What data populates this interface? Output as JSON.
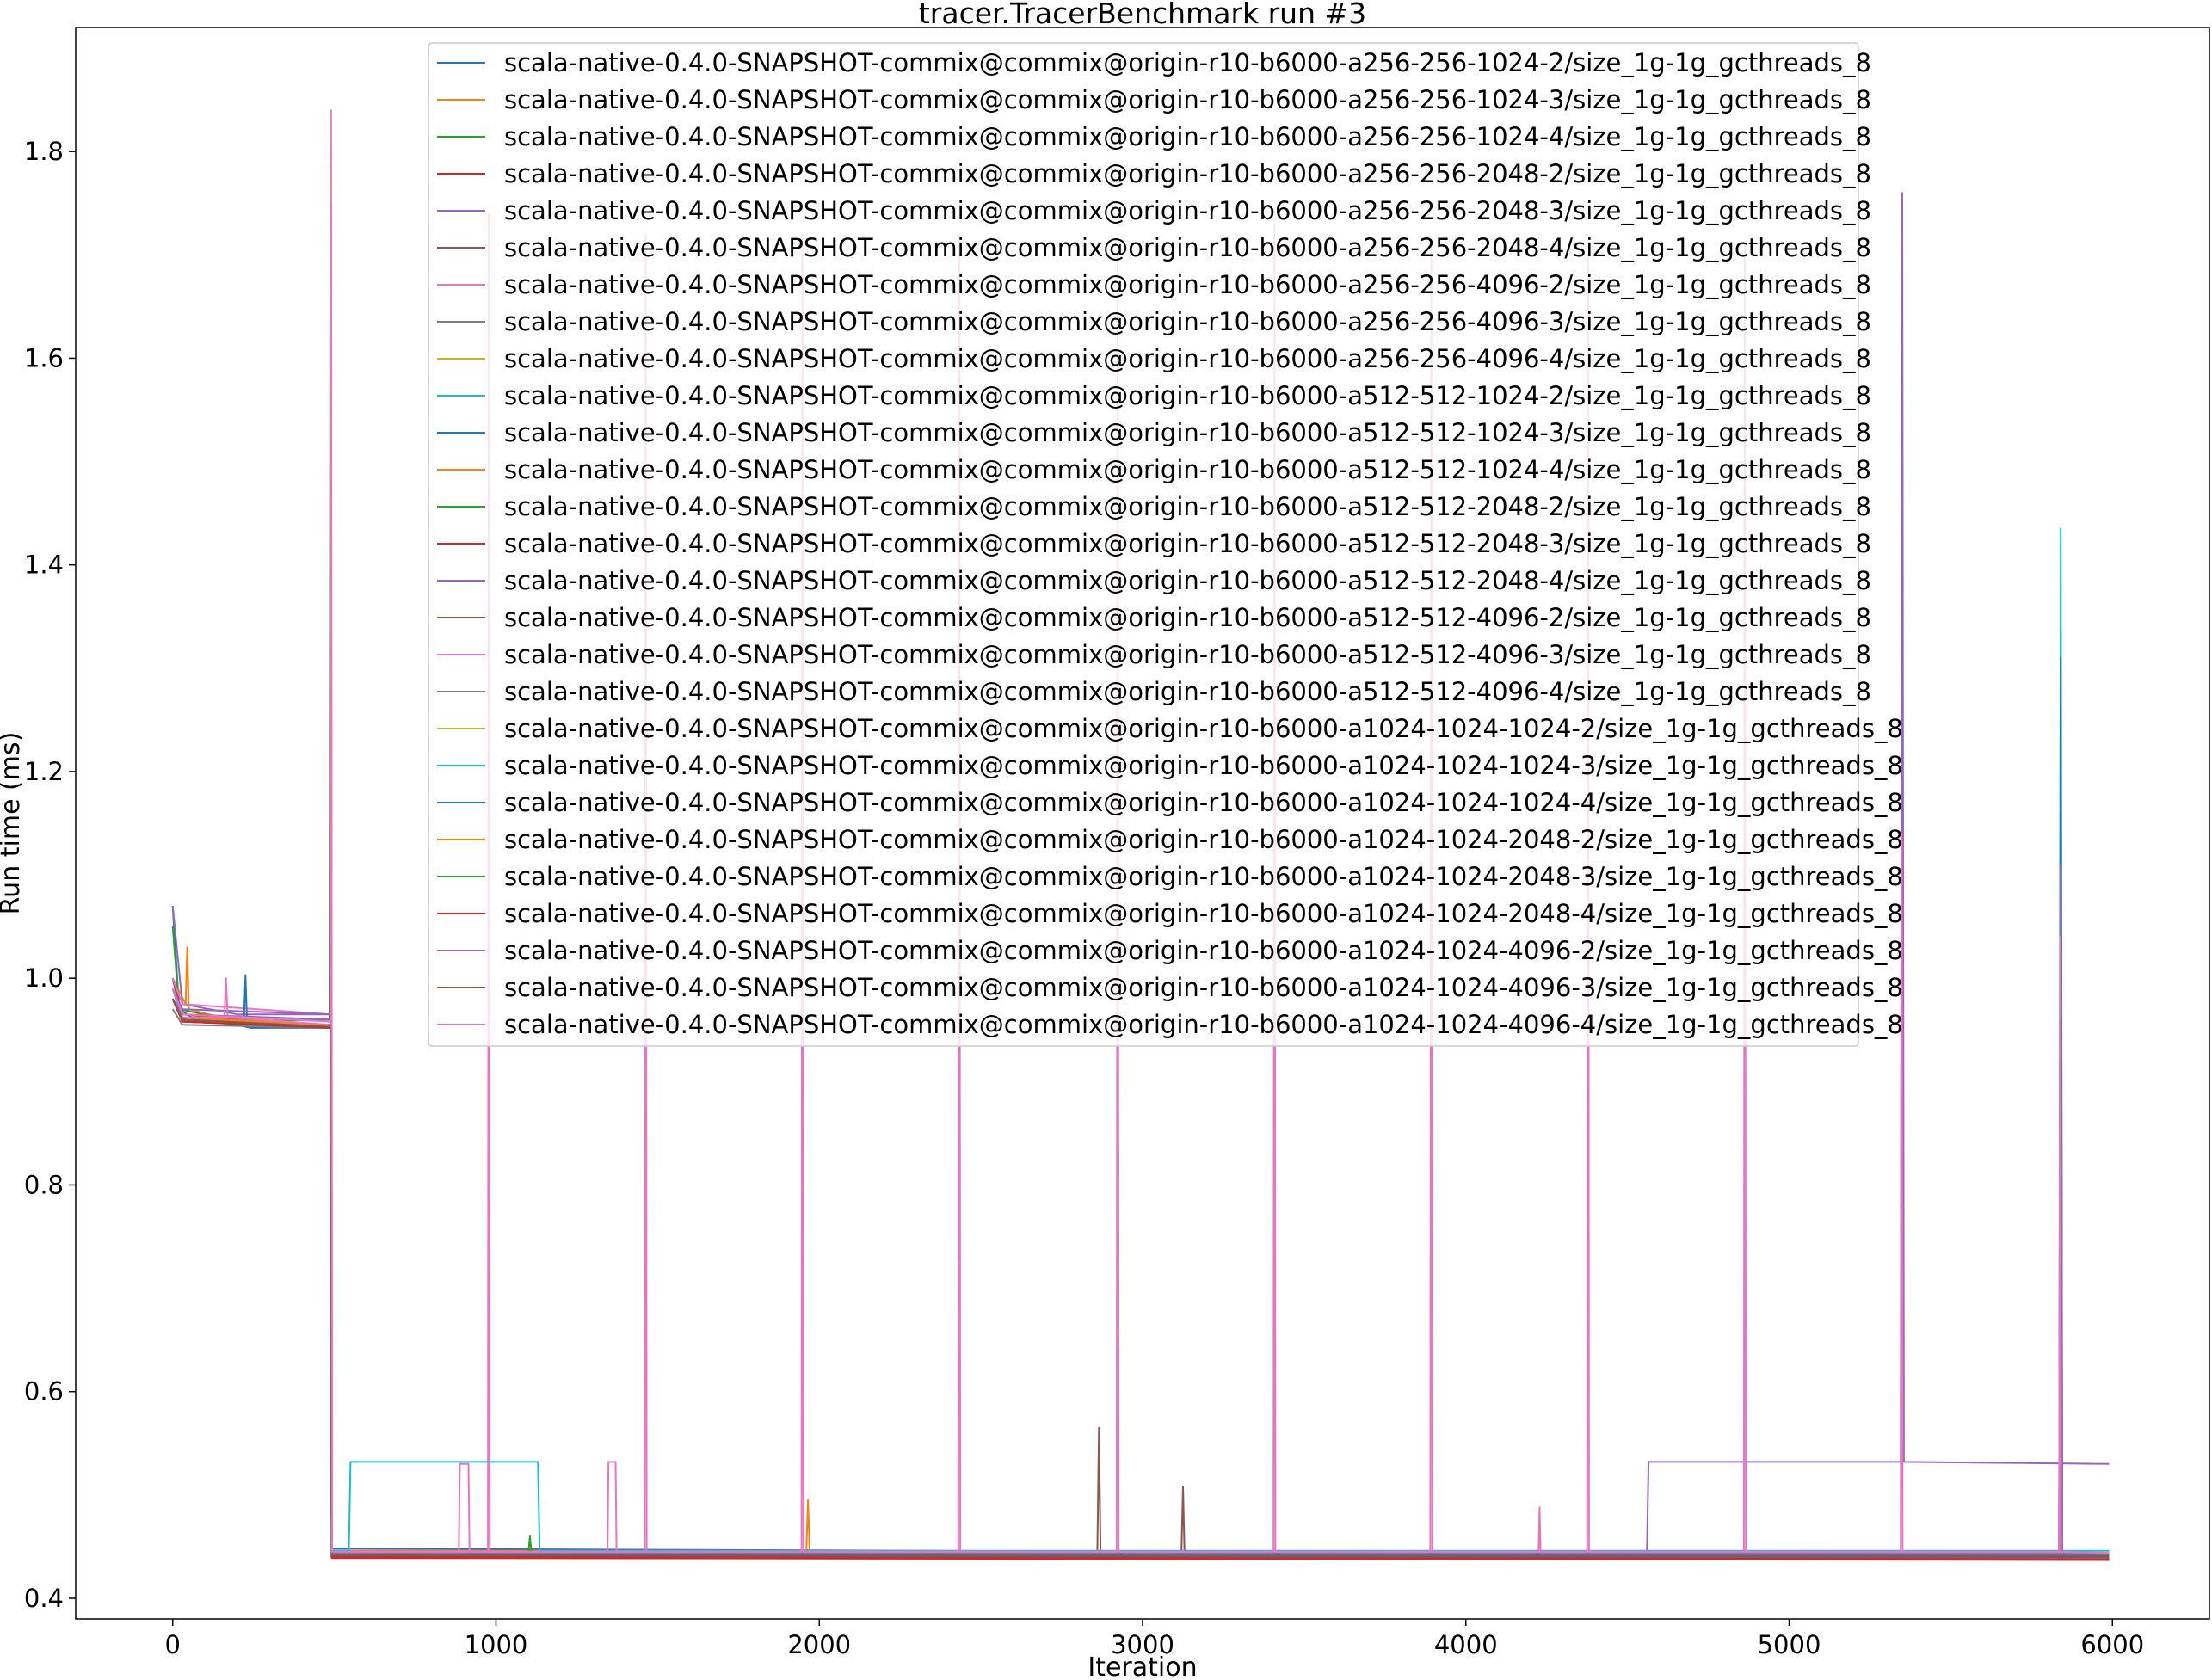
{
  "chart_data": {
    "type": "line",
    "title": "tracer.TracerBenchmark run #3",
    "xlabel": "Iteration",
    "ylabel": "Run time (ms)",
    "xlim": [
      -300,
      6300
    ],
    "ylim": [
      0.38,
      1.92
    ],
    "xticks": [
      0,
      1000,
      2000,
      3000,
      4000,
      5000,
      6000
    ],
    "xtick_labels": [
      "0",
      "1000",
      "2000",
      "3000",
      "4000",
      "5000",
      "6000"
    ],
    "yticks": [
      0.4,
      0.6,
      0.8,
      1.0,
      1.2,
      1.4,
      1.6,
      1.8
    ],
    "ytick_labels": [
      "0.4",
      "0.6",
      "0.8",
      "1.0",
      "1.2",
      "1.4",
      "1.6",
      "1.8"
    ],
    "grid": false,
    "legend_location": "upper center",
    "series": [
      {
        "name": "scala-native-0.4.0-SNAPSHOT-commix@commix@origin-r10-b6000-a256-256-1024-2/size_1g-1g_gcthreads_8",
        "color": "#1f77b4",
        "points": [
          [
            0,
            1.07
          ],
          [
            20,
            0.97
          ],
          [
            60,
            0.962
          ],
          [
            200,
            0.955
          ],
          [
            240,
            0.952
          ],
          [
            488,
            0.952
          ],
          [
            492,
            0.448
          ],
          [
            5990,
            0.442
          ]
        ]
      },
      {
        "name": "scala-native-0.4.0-SNAPSHOT-commix@commix@origin-r10-b6000-a256-256-1024-3/size_1g-1g_gcthreads_8",
        "color": "#ff7f0e",
        "points": [
          [
            0,
            1.0
          ],
          [
            40,
            0.975
          ],
          [
            45,
            1.03
          ],
          [
            50,
            0.97
          ],
          [
            200,
            0.958
          ],
          [
            488,
            0.955
          ],
          [
            492,
            0.446
          ],
          [
            1960,
            0.446
          ],
          [
            1965,
            0.495
          ],
          [
            1970,
            0.446
          ],
          [
            5990,
            0.444
          ]
        ]
      },
      {
        "name": "scala-native-0.4.0-SNAPSHOT-commix@commix@origin-r10-b6000-a256-256-1024-4/size_1g-1g_gcthreads_8",
        "color": "#2ca02c",
        "points": [
          [
            0,
            1.05
          ],
          [
            20,
            0.97
          ],
          [
            200,
            0.958
          ],
          [
            485,
            0.96
          ],
          [
            488,
            1.785
          ],
          [
            491,
            0.44
          ],
          [
            5990,
            0.44
          ]
        ]
      },
      {
        "name": "scala-native-0.4.0-SNAPSHOT-commix@commix@origin-r10-b6000-a256-256-2048-2/size_1g-1g_gcthreads_8",
        "color": "#d62728",
        "points": [
          [
            0,
            1.0
          ],
          [
            30,
            0.965
          ],
          [
            488,
            0.952
          ],
          [
            492,
            0.44
          ],
          [
            5835,
            0.438
          ],
          [
            5840,
            1.16
          ],
          [
            5845,
            0.438
          ],
          [
            5990,
            0.438
          ]
        ]
      },
      {
        "name": "scala-native-0.4.0-SNAPSHOT-commix@commix@origin-r10-b6000-a256-256-2048-3/size_1g-1g_gcthreads_8",
        "color": "#9467bd",
        "points": [
          [
            0,
            1.07
          ],
          [
            30,
            0.975
          ],
          [
            200,
            0.965
          ],
          [
            488,
            0.965
          ],
          [
            492,
            0.443
          ],
          [
            4560,
            0.443
          ],
          [
            4565,
            0.532
          ],
          [
            5345,
            0.532
          ],
          [
            5350,
            1.76
          ],
          [
            5355,
            0.532
          ],
          [
            5990,
            0.53
          ]
        ]
      },
      {
        "name": "scala-native-0.4.0-SNAPSHOT-commix@commix@origin-r10-b6000-a256-256-2048-4/size_1g-1g_gcthreads_8",
        "color": "#8c564b",
        "points": [
          [
            0,
            1.0
          ],
          [
            30,
            0.96
          ],
          [
            488,
            0.955
          ],
          [
            492,
            0.442
          ],
          [
            2860,
            0.442
          ],
          [
            2865,
            0.565
          ],
          [
            2870,
            0.442
          ],
          [
            3120,
            0.442
          ],
          [
            3125,
            0.508
          ],
          [
            3130,
            0.442
          ],
          [
            5990,
            0.44
          ]
        ]
      },
      {
        "name": "scala-native-0.4.0-SNAPSHOT-commix@commix@origin-r10-b6000-a256-256-4096-2/size_1g-1g_gcthreads_8",
        "color": "#e377c2",
        "points": [
          [
            0,
            1.0
          ],
          [
            30,
            0.975
          ],
          [
            488,
            0.965
          ],
          [
            490,
            1.84
          ],
          [
            493,
            0.445
          ],
          [
            975,
            0.445
          ],
          [
            978,
            1.74
          ],
          [
            981,
            0.445
          ],
          [
            1460,
            0.445
          ],
          [
            1463,
            1.72
          ],
          [
            1466,
            0.445
          ],
          [
            5990,
            0.443
          ]
        ]
      },
      {
        "name": "scala-native-0.4.0-SNAPSHOT-commix@commix@origin-r10-b6000-a256-256-4096-3/size_1g-1g_gcthreads_8",
        "color": "#7f7f7f",
        "points": [
          [
            0,
            0.99
          ],
          [
            30,
            0.96
          ],
          [
            488,
            0.953
          ],
          [
            492,
            0.441
          ],
          [
            5990,
            0.44
          ]
        ]
      },
      {
        "name": "scala-native-0.4.0-SNAPSHOT-commix@commix@origin-r10-b6000-a256-256-4096-4/size_1g-1g_gcthreads_8",
        "color": "#bcbd22",
        "points": [
          [
            0,
            0.98
          ],
          [
            30,
            0.96
          ],
          [
            488,
            0.955
          ],
          [
            492,
            0.444
          ],
          [
            5990,
            0.443
          ]
        ]
      },
      {
        "name": "scala-native-0.4.0-SNAPSHOT-commix@commix@origin-r10-b6000-a512-512-1024-2/size_1g-1g_gcthreads_8",
        "color": "#17becf",
        "points": [
          [
            0,
            0.99
          ],
          [
            30,
            0.962
          ],
          [
            488,
            0.955
          ],
          [
            492,
            0.446
          ],
          [
            545,
            0.446
          ],
          [
            550,
            0.532
          ],
          [
            1130,
            0.532
          ],
          [
            1135,
            0.446
          ],
          [
            5835,
            0.446
          ],
          [
            5840,
            1.435
          ],
          [
            5845,
            0.446
          ],
          [
            5990,
            0.446
          ]
        ]
      },
      {
        "name": "scala-native-0.4.0-SNAPSHOT-commix@commix@origin-r10-b6000-a512-512-1024-3/size_1g-1g_gcthreads_8",
        "color": "#1f77b4",
        "points": [
          [
            0,
            0.98
          ],
          [
            30,
            0.96
          ],
          [
            220,
            0.955
          ],
          [
            225,
            1.003
          ],
          [
            230,
            0.955
          ],
          [
            488,
            0.955
          ],
          [
            492,
            0.443
          ],
          [
            5835,
            0.443
          ],
          [
            5840,
            1.31
          ],
          [
            5845,
            0.443
          ],
          [
            5990,
            0.442
          ]
        ]
      },
      {
        "name": "scala-native-0.4.0-SNAPSHOT-commix@commix@origin-r10-b6000-a512-512-1024-4/size_1g-1g_gcthreads_8",
        "color": "#ff7f0e",
        "points": [
          [
            0,
            0.98
          ],
          [
            30,
            0.962
          ],
          [
            488,
            0.955
          ],
          [
            492,
            0.445
          ],
          [
            5990,
            0.444
          ]
        ]
      },
      {
        "name": "scala-native-0.4.0-SNAPSHOT-commix@commix@origin-r10-b6000-a512-512-2048-2/size_1g-1g_gcthreads_8",
        "color": "#2ca02c",
        "points": [
          [
            0,
            0.98
          ],
          [
            30,
            0.96
          ],
          [
            488,
            0.953
          ],
          [
            492,
            0.442
          ],
          [
            5990,
            0.441
          ]
        ]
      },
      {
        "name": "scala-native-0.4.0-SNAPSHOT-commix@commix@origin-r10-b6000-a512-512-2048-3/size_1g-1g_gcthreads_8",
        "color": "#d62728",
        "points": [
          [
            0,
            0.98
          ],
          [
            30,
            0.958
          ],
          [
            488,
            0.952
          ],
          [
            492,
            0.439
          ],
          [
            5990,
            0.437
          ]
        ]
      },
      {
        "name": "scala-native-0.4.0-SNAPSHOT-commix@commix@origin-r10-b6000-a512-512-2048-4/size_1g-1g_gcthreads_8",
        "color": "#9467bd",
        "points": [
          [
            0,
            0.99
          ],
          [
            30,
            0.97
          ],
          [
            488,
            0.965
          ],
          [
            492,
            0.444
          ],
          [
            5835,
            0.444
          ],
          [
            5840,
            1.11
          ],
          [
            5845,
            0.444
          ],
          [
            5990,
            0.443
          ]
        ]
      },
      {
        "name": "scala-native-0.4.0-SNAPSHOT-commix@commix@origin-r10-b6000-a512-512-4096-2/size_1g-1g_gcthreads_8",
        "color": "#8c564b",
        "points": [
          [
            0,
            0.98
          ],
          [
            30,
            0.96
          ],
          [
            488,
            0.953
          ],
          [
            492,
            0.441
          ],
          [
            5990,
            0.44
          ]
        ]
      },
      {
        "name": "scala-native-0.4.0-SNAPSHOT-commix@commix@origin-r10-b6000-a512-512-4096-3/size_1g-1g_gcthreads_8",
        "color": "#e377c2",
        "points": [
          [
            0,
            0.98
          ],
          [
            30,
            0.962
          ],
          [
            160,
            0.962
          ],
          [
            165,
            1.0
          ],
          [
            170,
            0.962
          ],
          [
            488,
            0.955
          ],
          [
            492,
            0.445
          ],
          [
            885,
            0.445
          ],
          [
            888,
            0.53
          ],
          [
            915,
            0.53
          ],
          [
            918,
            0.445
          ],
          [
            1345,
            0.445
          ],
          [
            1348,
            0.532
          ],
          [
            1370,
            0.532
          ],
          [
            1373,
            0.445
          ],
          [
            4225,
            0.445
          ],
          [
            4228,
            0.488
          ],
          [
            4231,
            0.445
          ],
          [
            5990,
            0.444
          ]
        ]
      },
      {
        "name": "scala-native-0.4.0-SNAPSHOT-commix@commix@origin-r10-b6000-a512-512-4096-4/size_1g-1g_gcthreads_8",
        "color": "#7f7f7f",
        "points": [
          [
            0,
            0.97
          ],
          [
            30,
            0.955
          ],
          [
            488,
            0.952
          ],
          [
            492,
            0.441
          ],
          [
            5990,
            0.44
          ]
        ]
      },
      {
        "name": "scala-native-0.4.0-SNAPSHOT-commix@commix@origin-r10-b6000-a1024-1024-1024-2/size_1g-1g_gcthreads_8",
        "color": "#bcbd22",
        "points": [
          [
            0,
            0.98
          ],
          [
            30,
            0.96
          ],
          [
            488,
            0.953
          ],
          [
            492,
            0.443
          ],
          [
            5990,
            0.442
          ]
        ]
      },
      {
        "name": "scala-native-0.4.0-SNAPSHOT-commix@commix@origin-r10-b6000-a1024-1024-1024-3/size_1g-1g_gcthreads_8",
        "color": "#17becf",
        "points": [
          [
            0,
            0.98
          ],
          [
            30,
            0.96
          ],
          [
            488,
            0.954
          ],
          [
            492,
            0.444
          ],
          [
            5990,
            0.443
          ]
        ]
      },
      {
        "name": "scala-native-0.4.0-SNAPSHOT-commix@commix@origin-r10-b6000-a1024-1024-1024-4/size_1g-1g_gcthreads_8",
        "color": "#1f77b4",
        "points": [
          [
            0,
            0.98
          ],
          [
            30,
            0.958
          ],
          [
            488,
            0.952
          ],
          [
            492,
            0.441
          ],
          [
            5990,
            0.44
          ]
        ]
      },
      {
        "name": "scala-native-0.4.0-SNAPSHOT-commix@commix@origin-r10-b6000-a1024-1024-2048-2/size_1g-1g_gcthreads_8",
        "color": "#ff7f0e",
        "points": [
          [
            0,
            0.98
          ],
          [
            30,
            0.96
          ],
          [
            488,
            0.954
          ],
          [
            492,
            0.444
          ],
          [
            5990,
            0.443
          ]
        ]
      },
      {
        "name": "scala-native-0.4.0-SNAPSHOT-commix@commix@origin-r10-b6000-a1024-1024-2048-3/size_1g-1g_gcthreads_8",
        "color": "#2ca02c",
        "points": [
          [
            0,
            0.98
          ],
          [
            30,
            0.96
          ],
          [
            488,
            0.953
          ],
          [
            492,
            0.443
          ],
          [
            1100,
            0.443
          ],
          [
            1105,
            0.46
          ],
          [
            1110,
            0.443
          ],
          [
            5990,
            0.442
          ]
        ]
      },
      {
        "name": "scala-native-0.4.0-SNAPSHOT-commix@commix@origin-r10-b6000-a1024-1024-2048-4/size_1g-1g_gcthreads_8",
        "color": "#d62728",
        "points": [
          [
            0,
            0.98
          ],
          [
            30,
            0.958
          ],
          [
            488,
            0.952
          ],
          [
            492,
            0.44
          ],
          [
            5990,
            0.438
          ]
        ]
      },
      {
        "name": "scala-native-0.4.0-SNAPSHOT-commix@commix@origin-r10-b6000-a1024-1024-4096-2/size_1g-1g_gcthreads_8",
        "color": "#9467bd",
        "points": [
          [
            0,
            0.98
          ],
          [
            30,
            0.965
          ],
          [
            488,
            0.96
          ],
          [
            492,
            0.444
          ],
          [
            5990,
            0.443
          ]
        ]
      },
      {
        "name": "scala-native-0.4.0-SNAPSHOT-commix@commix@origin-r10-b6000-a1024-1024-4096-3/size_1g-1g_gcthreads_8",
        "color": "#8c564b",
        "points": [
          [
            0,
            0.98
          ],
          [
            30,
            0.96
          ],
          [
            488,
            0.953
          ],
          [
            492,
            0.442
          ],
          [
            5990,
            0.441
          ]
        ]
      },
      {
        "name": "scala-native-0.4.0-SNAPSHOT-commix@commix@origin-r10-b6000-a1024-1024-4096-4/size_1g-1g_gcthreads_8",
        "color": "#e377c2",
        "points": [
          [
            0,
            0.99
          ],
          [
            30,
            0.965
          ],
          [
            488,
            0.958
          ],
          [
            490,
            1.75
          ],
          [
            493,
            0.445
          ],
          [
            1945,
            0.445
          ],
          [
            1948,
            1.72
          ],
          [
            1951,
            0.445
          ],
          [
            2430,
            0.445
          ],
          [
            2433,
            1.72
          ],
          [
            2436,
            0.445
          ],
          [
            2920,
            0.445
          ],
          [
            2923,
            1.7
          ],
          [
            2926,
            0.445
          ],
          [
            3405,
            0.445
          ],
          [
            3408,
            1.73
          ],
          [
            3411,
            0.445
          ],
          [
            3890,
            0.445
          ],
          [
            3893,
            1.71
          ],
          [
            3896,
            0.445
          ],
          [
            4375,
            0.445
          ],
          [
            4378,
            1.7
          ],
          [
            4381,
            0.445
          ],
          [
            4860,
            0.445
          ],
          [
            4863,
            1.71
          ],
          [
            4866,
            0.445
          ],
          [
            5345,
            0.445
          ],
          [
            5348,
            1.14
          ],
          [
            5351,
            0.445
          ],
          [
            5835,
            0.445
          ],
          [
            5838,
            1.04
          ],
          [
            5841,
            0.445
          ],
          [
            5990,
            0.444
          ]
        ]
      }
    ]
  }
}
